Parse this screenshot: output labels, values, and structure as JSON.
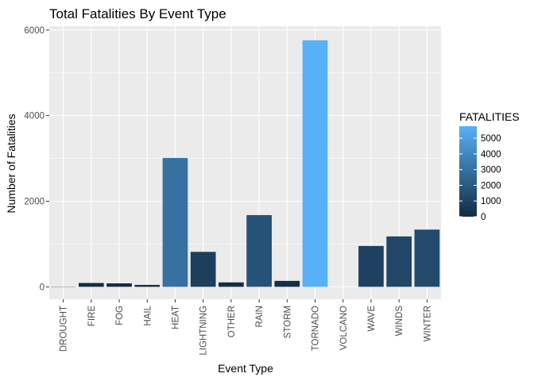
{
  "chart_data": {
    "type": "bar",
    "title": "Total Fatalities By Event Type",
    "xlabel": "Event Type",
    "ylabel": "Number of Fatalities",
    "categories": [
      "DROUGHT",
      "FIRE",
      "FOG",
      "HAIL",
      "HEAT",
      "LIGHTNING",
      "OTHER",
      "RAIN",
      "STORM",
      "TORNADO",
      "VOLCANO",
      "WAVE",
      "WINDS",
      "WINTER"
    ],
    "values": [
      6,
      90,
      81,
      45,
      3010,
      817,
      104,
      1676,
      139,
      5761,
      0,
      955,
      1178,
      1337
    ],
    "yticks": [
      0,
      2000,
      4000,
      6000
    ],
    "ylim": [
      -290,
      6090
    ],
    "grid": true,
    "legend": {
      "title": "FATALITIES",
      "position": "right",
      "ticks": [
        0,
        1000,
        2000,
        3000,
        4000,
        5000
      ],
      "color_low": "#132b43",
      "color_high": "#56b1f7",
      "value_range": [
        0,
        5761
      ]
    }
  }
}
